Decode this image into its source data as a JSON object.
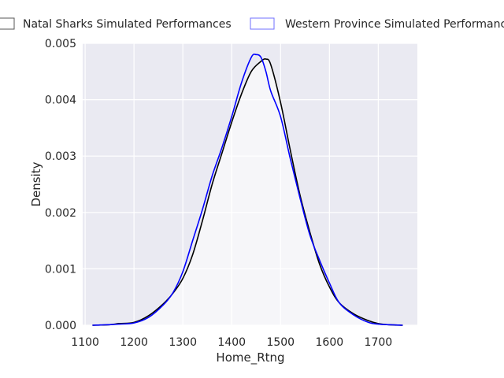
{
  "chart_data": {
    "type": "area",
    "title": "",
    "xlabel": "Home_Rtng",
    "ylabel": "Density",
    "xlim": [
      1095,
      1780
    ],
    "ylim": [
      0,
      0.005
    ],
    "xticks": [
      1100,
      1200,
      1300,
      1400,
      1500,
      1600,
      1700
    ],
    "xtick_labels": [
      "1100",
      "1200",
      "1300",
      "1400",
      "1500",
      "1600",
      "1700"
    ],
    "yticks": [
      0,
      0.001,
      0.002,
      0.003,
      0.004,
      0.005
    ],
    "ytick_labels": [
      "0.000",
      "0.001",
      "0.002",
      "0.003",
      "0.004",
      "0.005"
    ],
    "grid": true,
    "legend_position": "top, above plot",
    "colors": {
      "plot_bg": "#eaeaf2",
      "grid": "#ffffff",
      "text": "#262626"
    },
    "series": [
      {
        "name": "Natal Sharks Simulated Performances",
        "line_color": "#000000",
        "fill_color": "#ffffff",
        "fill_opacity": 0.55,
        "x": [
          1115,
          1150,
          1170,
          1200,
          1230,
          1260,
          1280,
          1300,
          1320,
          1340,
          1360,
          1380,
          1400,
          1420,
          1440,
          1460,
          1470,
          1480,
          1500,
          1520,
          1540,
          1560,
          1580,
          1600,
          1620,
          1650,
          1680,
          1700,
          1720,
          1750
        ],
        "y": [
          0.0,
          1e-05,
          3e-05,
          5e-05,
          0.00017,
          0.00038,
          0.00057,
          0.00083,
          0.00125,
          0.00185,
          0.0025,
          0.00305,
          0.0036,
          0.0041,
          0.0045,
          0.00468,
          0.00472,
          0.00462,
          0.00395,
          0.0031,
          0.0023,
          0.00165,
          0.00108,
          0.00068,
          0.0004,
          0.0002,
          8e-05,
          3e-05,
          1e-05,
          0.0
        ]
      },
      {
        "name": "Western Province Simulated Performances",
        "line_color": "#0000ff",
        "fill_color": "#ffffff",
        "fill_opacity": 0.0,
        "x": [
          1115,
          1150,
          1170,
          1200,
          1230,
          1260,
          1280,
          1300,
          1320,
          1340,
          1360,
          1380,
          1400,
          1420,
          1440,
          1450,
          1460,
          1470,
          1480,
          1500,
          1520,
          1540,
          1560,
          1580,
          1600,
          1620,
          1650,
          1680,
          1700,
          1720,
          1750
        ],
        "y": [
          0.0,
          1e-05,
          2e-05,
          4e-05,
          0.00014,
          0.00036,
          0.00058,
          0.00095,
          0.0015,
          0.00205,
          0.00265,
          0.00315,
          0.0037,
          0.0043,
          0.00475,
          0.0048,
          0.00475,
          0.0045,
          0.00415,
          0.0037,
          0.00295,
          0.00225,
          0.0016,
          0.00115,
          0.00075,
          0.0004,
          0.00018,
          5e-05,
          2e-05,
          1e-05,
          0.0
        ]
      }
    ]
  }
}
